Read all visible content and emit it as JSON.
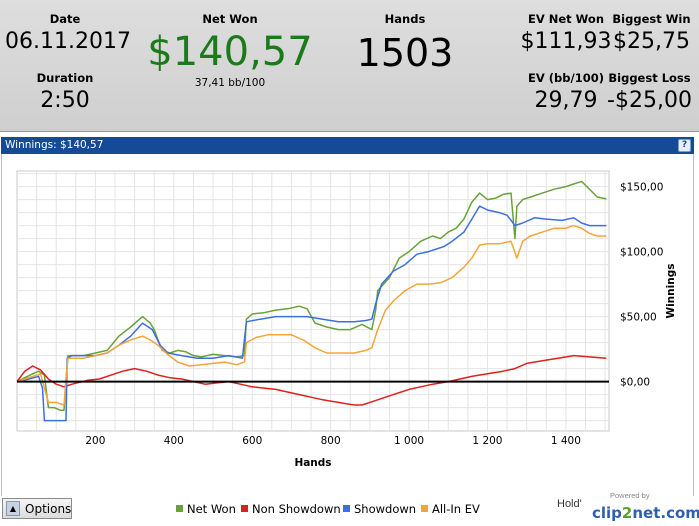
{
  "stats": {
    "date_label": "Date",
    "date_value": "06.11.2017",
    "duration_label": "Duration",
    "duration_value": "2:50",
    "net_won_label": "Net Won",
    "net_won_value": "$140,57",
    "bb_per_100": "37,41 bb/100",
    "hands_label": "Hands",
    "hands_value": "1503",
    "ev_net_won_label": "EV Net Won",
    "ev_net_won_value": "$111,93",
    "ev_bb_label": "EV (bb/100)",
    "ev_bb_value": "29,79",
    "biggest_win_label": "Biggest Win",
    "biggest_win_value": "$25,75",
    "biggest_loss_label": "Biggest Loss",
    "biggest_loss_value": "-$25,00"
  },
  "chart_header": {
    "title": "Winnings: $140,57",
    "help": "?"
  },
  "options": {
    "label": "Options",
    "icon": "triangle-up-icon"
  },
  "branding": {
    "holdem": "Hold'",
    "powered": "Powered by",
    "logo_prefix": "clip",
    "logo_mid": "2",
    "logo_suffix": "net.com"
  },
  "colors": {
    "net_won": "#6aa23a",
    "non_showdown": "#e0201c",
    "showdown": "#3d6fe0",
    "all_in_ev": "#f5a43a",
    "net_won_text": "#1b7a1b",
    "header_bar": "#154a97"
  },
  "chart_data": {
    "type": "line",
    "xlabel": "Hands",
    "ylabel": "Winnings",
    "xlim": [
      0,
      1510
    ],
    "ylim": [
      -38,
      162
    ],
    "x_ticks": [
      {
        "value": 200,
        "label": "200"
      },
      {
        "value": 400,
        "label": "400"
      },
      {
        "value": 600,
        "label": "600"
      },
      {
        "value": 800,
        "label": "800"
      },
      {
        "value": 1000,
        "label": "1 000"
      },
      {
        "value": 1200,
        "label": "1 200"
      },
      {
        "value": 1400,
        "label": "1 400"
      }
    ],
    "y_ticks": [
      {
        "value": 0,
        "label": "$0,00"
      },
      {
        "value": 50,
        "label": "$50,00"
      },
      {
        "value": 100,
        "label": "$100,00"
      },
      {
        "value": 150,
        "label": "$150,00"
      }
    ],
    "grid": true,
    "legend_position": "bottom",
    "series": [
      {
        "name": "Net Won",
        "color": "#6aa23a",
        "points": [
          [
            0,
            0
          ],
          [
            20,
            3
          ],
          [
            40,
            6
          ],
          [
            55,
            8
          ],
          [
            70,
            5
          ],
          [
            80,
            -20
          ],
          [
            95,
            -20
          ],
          [
            110,
            -22
          ],
          [
            120,
            -22
          ],
          [
            125,
            2
          ],
          [
            130,
            20
          ],
          [
            170,
            20
          ],
          [
            200,
            22
          ],
          [
            230,
            24
          ],
          [
            260,
            35
          ],
          [
            290,
            42
          ],
          [
            320,
            50
          ],
          [
            340,
            45
          ],
          [
            350,
            40
          ],
          [
            370,
            24
          ],
          [
            390,
            22
          ],
          [
            410,
            24
          ],
          [
            430,
            23
          ],
          [
            450,
            20
          ],
          [
            470,
            19
          ],
          [
            500,
            21
          ],
          [
            530,
            20
          ],
          [
            560,
            19
          ],
          [
            580,
            20
          ],
          [
            585,
            48
          ],
          [
            600,
            52
          ],
          [
            630,
            53
          ],
          [
            660,
            55
          ],
          [
            690,
            56
          ],
          [
            720,
            58
          ],
          [
            740,
            56
          ],
          [
            760,
            45
          ],
          [
            790,
            42
          ],
          [
            820,
            40
          ],
          [
            850,
            40
          ],
          [
            880,
            44
          ],
          [
            905,
            40
          ],
          [
            915,
            55
          ],
          [
            920,
            70
          ],
          [
            950,
            80
          ],
          [
            975,
            95
          ],
          [
            1000,
            100
          ],
          [
            1030,
            108
          ],
          [
            1060,
            112
          ],
          [
            1080,
            110
          ],
          [
            1100,
            115
          ],
          [
            1120,
            118
          ],
          [
            1140,
            125
          ],
          [
            1160,
            138
          ],
          [
            1180,
            145
          ],
          [
            1200,
            140
          ],
          [
            1220,
            141
          ],
          [
            1240,
            144
          ],
          [
            1260,
            145
          ],
          [
            1270,
            110
          ],
          [
            1275,
            135
          ],
          [
            1290,
            140
          ],
          [
            1310,
            142
          ],
          [
            1340,
            145
          ],
          [
            1370,
            148
          ],
          [
            1400,
            150
          ],
          [
            1420,
            152
          ],
          [
            1440,
            154
          ],
          [
            1460,
            148
          ],
          [
            1480,
            142
          ],
          [
            1503,
            140.57
          ]
        ]
      },
      {
        "name": "Non Showdown",
        "color": "#e0201c",
        "points": [
          [
            0,
            0
          ],
          [
            20,
            8
          ],
          [
            40,
            12
          ],
          [
            60,
            9
          ],
          [
            80,
            2
          ],
          [
            100,
            -2
          ],
          [
            120,
            -4
          ],
          [
            140,
            -2
          ],
          [
            180,
            1
          ],
          [
            210,
            2
          ],
          [
            240,
            5
          ],
          [
            270,
            8
          ],
          [
            300,
            10
          ],
          [
            330,
            8
          ],
          [
            360,
            5
          ],
          [
            390,
            3
          ],
          [
            420,
            2
          ],
          [
            450,
            0
          ],
          [
            480,
            -2
          ],
          [
            510,
            -1
          ],
          [
            540,
            0
          ],
          [
            570,
            -2
          ],
          [
            600,
            -4
          ],
          [
            630,
            -5
          ],
          [
            660,
            -6
          ],
          [
            690,
            -8
          ],
          [
            720,
            -10
          ],
          [
            750,
            -12
          ],
          [
            780,
            -14
          ],
          [
            800,
            -15
          ],
          [
            820,
            -16
          ],
          [
            840,
            -17
          ],
          [
            860,
            -18
          ],
          [
            880,
            -18
          ],
          [
            900,
            -16
          ],
          [
            920,
            -14
          ],
          [
            940,
            -12
          ],
          [
            960,
            -10
          ],
          [
            980,
            -8
          ],
          [
            1000,
            -6
          ],
          [
            1030,
            -4
          ],
          [
            1060,
            -2
          ],
          [
            1100,
            0
          ],
          [
            1130,
            2
          ],
          [
            1160,
            4
          ],
          [
            1200,
            6
          ],
          [
            1240,
            8
          ],
          [
            1270,
            10
          ],
          [
            1300,
            14
          ],
          [
            1340,
            16
          ],
          [
            1380,
            18
          ],
          [
            1420,
            20
          ],
          [
            1460,
            19
          ],
          [
            1503,
            18
          ]
        ]
      },
      {
        "name": "Showdown",
        "color": "#3d6fe0",
        "points": [
          [
            0,
            0
          ],
          [
            30,
            2
          ],
          [
            55,
            4
          ],
          [
            65,
            -5
          ],
          [
            70,
            -30
          ],
          [
            90,
            -30
          ],
          [
            110,
            -30
          ],
          [
            125,
            -30
          ],
          [
            128,
            18
          ],
          [
            140,
            20
          ],
          [
            170,
            20
          ],
          [
            200,
            20
          ],
          [
            230,
            22
          ],
          [
            260,
            28
          ],
          [
            290,
            35
          ],
          [
            320,
            45
          ],
          [
            345,
            40
          ],
          [
            365,
            28
          ],
          [
            385,
            22
          ],
          [
            420,
            20
          ],
          [
            460,
            18
          ],
          [
            500,
            18
          ],
          [
            540,
            20
          ],
          [
            575,
            18
          ],
          [
            585,
            46
          ],
          [
            620,
            48
          ],
          [
            660,
            50
          ],
          [
            700,
            50
          ],
          [
            740,
            50
          ],
          [
            780,
            48
          ],
          [
            820,
            46
          ],
          [
            860,
            46
          ],
          [
            890,
            47
          ],
          [
            905,
            48
          ],
          [
            915,
            60
          ],
          [
            930,
            75
          ],
          [
            960,
            85
          ],
          [
            990,
            90
          ],
          [
            1020,
            98
          ],
          [
            1050,
            100
          ],
          [
            1070,
            102
          ],
          [
            1090,
            104
          ],
          [
            1110,
            108
          ],
          [
            1140,
            115
          ],
          [
            1160,
            125
          ],
          [
            1180,
            135
          ],
          [
            1200,
            132
          ],
          [
            1230,
            130
          ],
          [
            1250,
            128
          ],
          [
            1270,
            120
          ],
          [
            1290,
            122
          ],
          [
            1320,
            126
          ],
          [
            1350,
            125
          ],
          [
            1390,
            124
          ],
          [
            1420,
            126
          ],
          [
            1440,
            122
          ],
          [
            1460,
            120
          ],
          [
            1480,
            120
          ],
          [
            1503,
            120
          ]
        ]
      },
      {
        "name": "All-In EV",
        "color": "#f5a43a",
        "points": [
          [
            0,
            0
          ],
          [
            30,
            3
          ],
          [
            60,
            6
          ],
          [
            80,
            -16
          ],
          [
            100,
            -16
          ],
          [
            120,
            -18
          ],
          [
            125,
            2
          ],
          [
            130,
            18
          ],
          [
            170,
            18
          ],
          [
            200,
            20
          ],
          [
            230,
            22
          ],
          [
            260,
            28
          ],
          [
            290,
            32
          ],
          [
            320,
            35
          ],
          [
            340,
            32
          ],
          [
            360,
            28
          ],
          [
            380,
            22
          ],
          [
            410,
            15
          ],
          [
            440,
            12
          ],
          [
            470,
            13
          ],
          [
            500,
            14
          ],
          [
            530,
            15
          ],
          [
            560,
            13
          ],
          [
            580,
            15
          ],
          [
            585,
            30
          ],
          [
            610,
            34
          ],
          [
            640,
            36
          ],
          [
            670,
            36
          ],
          [
            700,
            36
          ],
          [
            730,
            32
          ],
          [
            760,
            26
          ],
          [
            790,
            22
          ],
          [
            820,
            22
          ],
          [
            860,
            22
          ],
          [
            890,
            24
          ],
          [
            905,
            26
          ],
          [
            920,
            40
          ],
          [
            940,
            55
          ],
          [
            960,
            62
          ],
          [
            990,
            70
          ],
          [
            1020,
            75
          ],
          [
            1050,
            75
          ],
          [
            1080,
            76
          ],
          [
            1110,
            80
          ],
          [
            1140,
            88
          ],
          [
            1160,
            95
          ],
          [
            1180,
            105
          ],
          [
            1200,
            106
          ],
          [
            1230,
            106
          ],
          [
            1260,
            108
          ],
          [
            1275,
            95
          ],
          [
            1290,
            108
          ],
          [
            1310,
            112
          ],
          [
            1340,
            115
          ],
          [
            1370,
            118
          ],
          [
            1400,
            118
          ],
          [
            1420,
            120
          ],
          [
            1440,
            118
          ],
          [
            1460,
            114
          ],
          [
            1480,
            112
          ],
          [
            1503,
            112
          ]
        ]
      }
    ]
  }
}
